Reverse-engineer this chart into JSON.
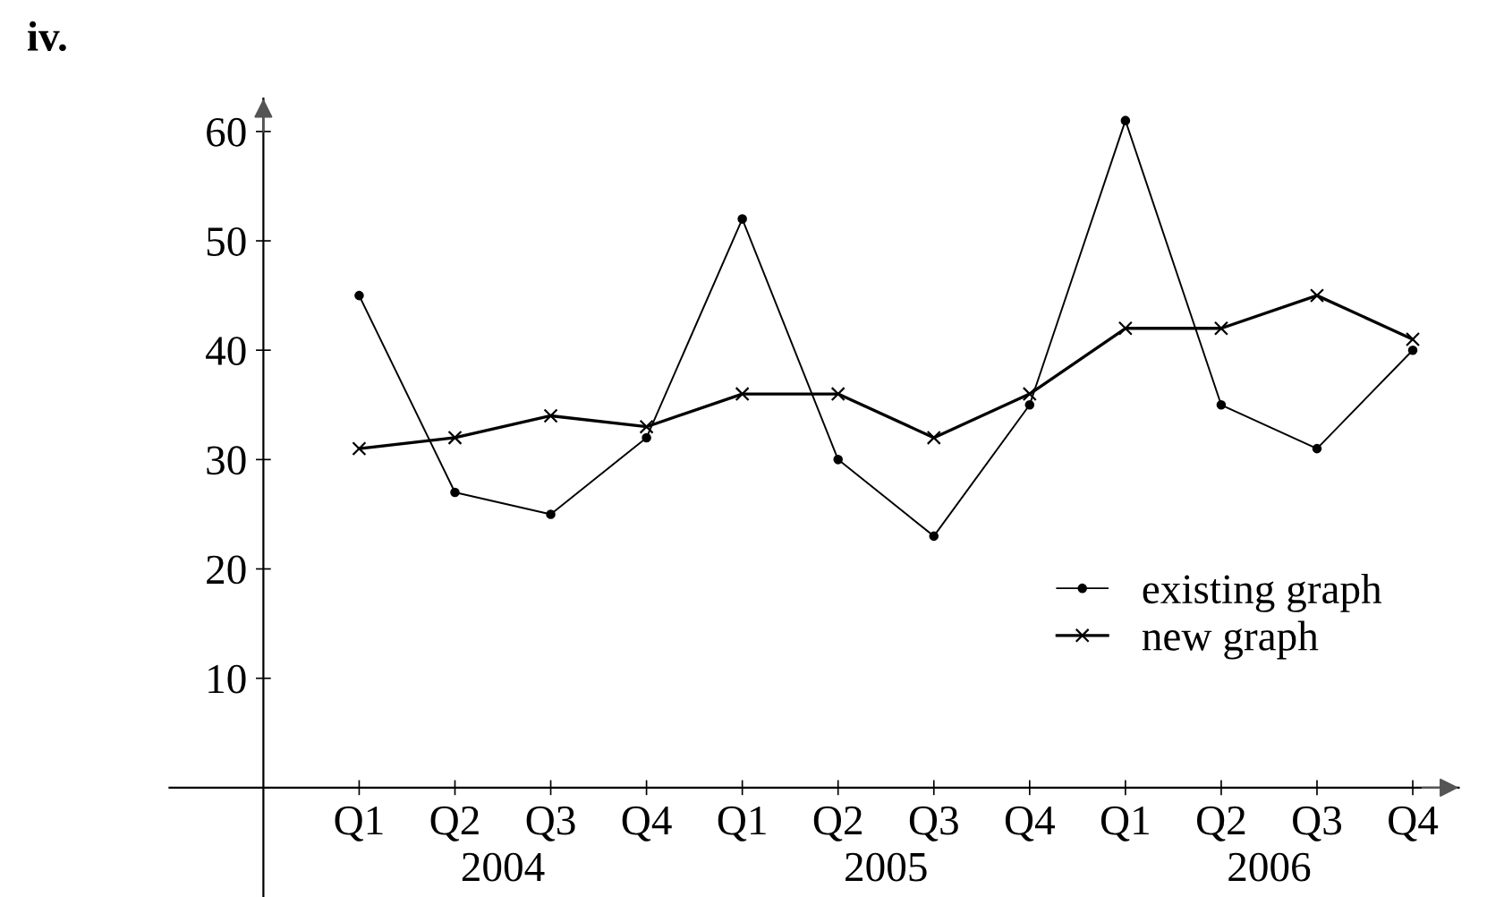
{
  "chart_data": {
    "type": "line",
    "title": "iv.",
    "categories": [
      "Q1",
      "Q2",
      "Q3",
      "Q4",
      "Q1",
      "Q2",
      "Q3",
      "Q4",
      "Q1",
      "Q2",
      "Q3",
      "Q4"
    ],
    "series": [
      {
        "name": "existing graph",
        "color": "#000000",
        "marker": "circle",
        "values": [
          45,
          27,
          25,
          32,
          52,
          30,
          23,
          35,
          61,
          35,
          31,
          40
        ]
      },
      {
        "name": "new graph",
        "color": "#000000",
        "marker": "cross",
        "values": [
          31,
          32,
          34,
          33,
          36,
          36,
          32,
          36,
          42,
          42,
          45,
          41
        ]
      }
    ],
    "annotations": [
      "2004",
      "2005",
      "2006"
    ],
    "ylim": [
      -10,
      63
    ],
    "yticks": [
      10,
      20,
      30,
      40,
      50,
      60
    ],
    "grid": false,
    "legend": "bottom right",
    "line_style": "solid"
  }
}
